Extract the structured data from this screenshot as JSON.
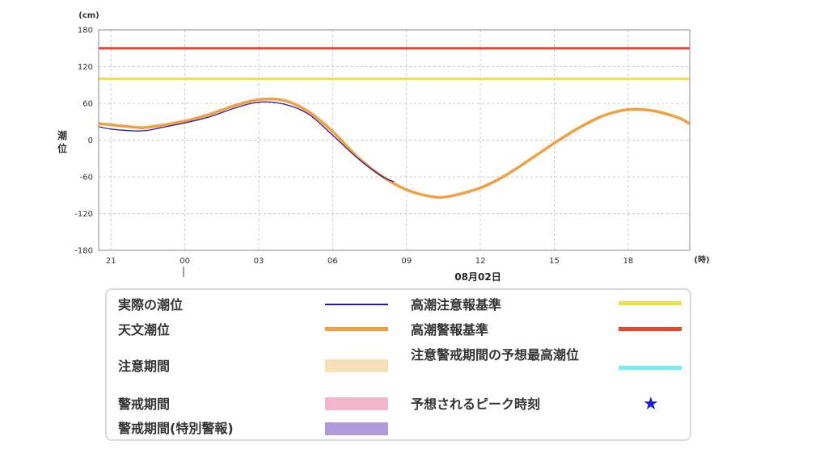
{
  "chart_data": {
    "type": "line",
    "units": {
      "y": "(cm)",
      "x": "(時)"
    },
    "ylabel": "潮位",
    "date_label": "08月02日",
    "ylim": [
      -180,
      180
    ],
    "yticks": [
      180,
      120,
      60,
      0,
      -60,
      -120,
      -180
    ],
    "xlim_hours": [
      -3.5,
      20.5
    ],
    "xticks": [
      {
        "hour": -3,
        "label": "21"
      },
      {
        "hour": 0,
        "label": "00"
      },
      {
        "hour": 3,
        "label": "03"
      },
      {
        "hour": 6,
        "label": "06"
      },
      {
        "hour": 9,
        "label": "09"
      },
      {
        "hour": 12,
        "label": "12"
      },
      {
        "hour": 15,
        "label": "15"
      },
      {
        "hour": 18,
        "label": "18"
      }
    ],
    "grid": true,
    "thresholds": [
      {
        "name": "高潮警報基準",
        "value": 150,
        "color": "#e8452c"
      },
      {
        "name": "高潮注意報基準",
        "value": 100,
        "color": "#ecdf45"
      }
    ],
    "series": [
      {
        "name": "天文潮位",
        "color": "#f0a043",
        "x": [
          -3.5,
          -2,
          -1.5,
          0,
          1,
          2,
          3,
          4,
          5,
          6,
          7,
          8,
          9,
          10,
          10.7,
          12,
          13,
          14,
          15,
          16,
          17,
          18,
          19,
          20,
          20.5
        ],
        "y": [
          27,
          21,
          21,
          31,
          42,
          56,
          66,
          65,
          47,
          14,
          -27,
          -59,
          -81,
          -92,
          -92,
          -78,
          -58,
          -32,
          -5,
          20,
          40,
          50,
          48,
          37,
          27
        ]
      },
      {
        "name": "実際の潮位",
        "color": "#2a1aa0",
        "x": [
          -3.5,
          -3,
          -2,
          -1.5,
          -1,
          0,
          1,
          2,
          3,
          4,
          5,
          6,
          7,
          8,
          8.5
        ],
        "y": [
          22,
          18,
          15,
          16,
          20,
          28,
          38,
          52,
          62,
          59,
          43,
          8,
          -29,
          -59,
          -68
        ]
      }
    ]
  },
  "legend": {
    "left": [
      {
        "label": "実際の潮位",
        "color": "#2a1aa0",
        "kind": "thin-line"
      },
      {
        "label": "天文潮位",
        "color": "#f0a043",
        "kind": "thick-line"
      },
      {
        "label": "注意期間",
        "color": "#f9dfb8",
        "kind": "band"
      },
      {
        "label": "警戒期間",
        "color": "#f2b5ca",
        "kind": "band"
      },
      {
        "label": "警戒期間(特別警報)",
        "color": "#b19bdc",
        "kind": "band"
      }
    ],
    "right": [
      {
        "label": "高潮注意報基準",
        "color": "#ecdf45",
        "kind": "thick-line"
      },
      {
        "label": "高潮警報基準",
        "color": "#e8452c",
        "kind": "thick-line"
      },
      {
        "label": "注意警戒期間の予想最高潮位",
        "color": "#75ecf5",
        "kind": "thick-line"
      },
      {
        "label": "予想されるピーク時刻",
        "color": "#1a1adb",
        "kind": "star",
        "symbol": "★"
      }
    ]
  }
}
